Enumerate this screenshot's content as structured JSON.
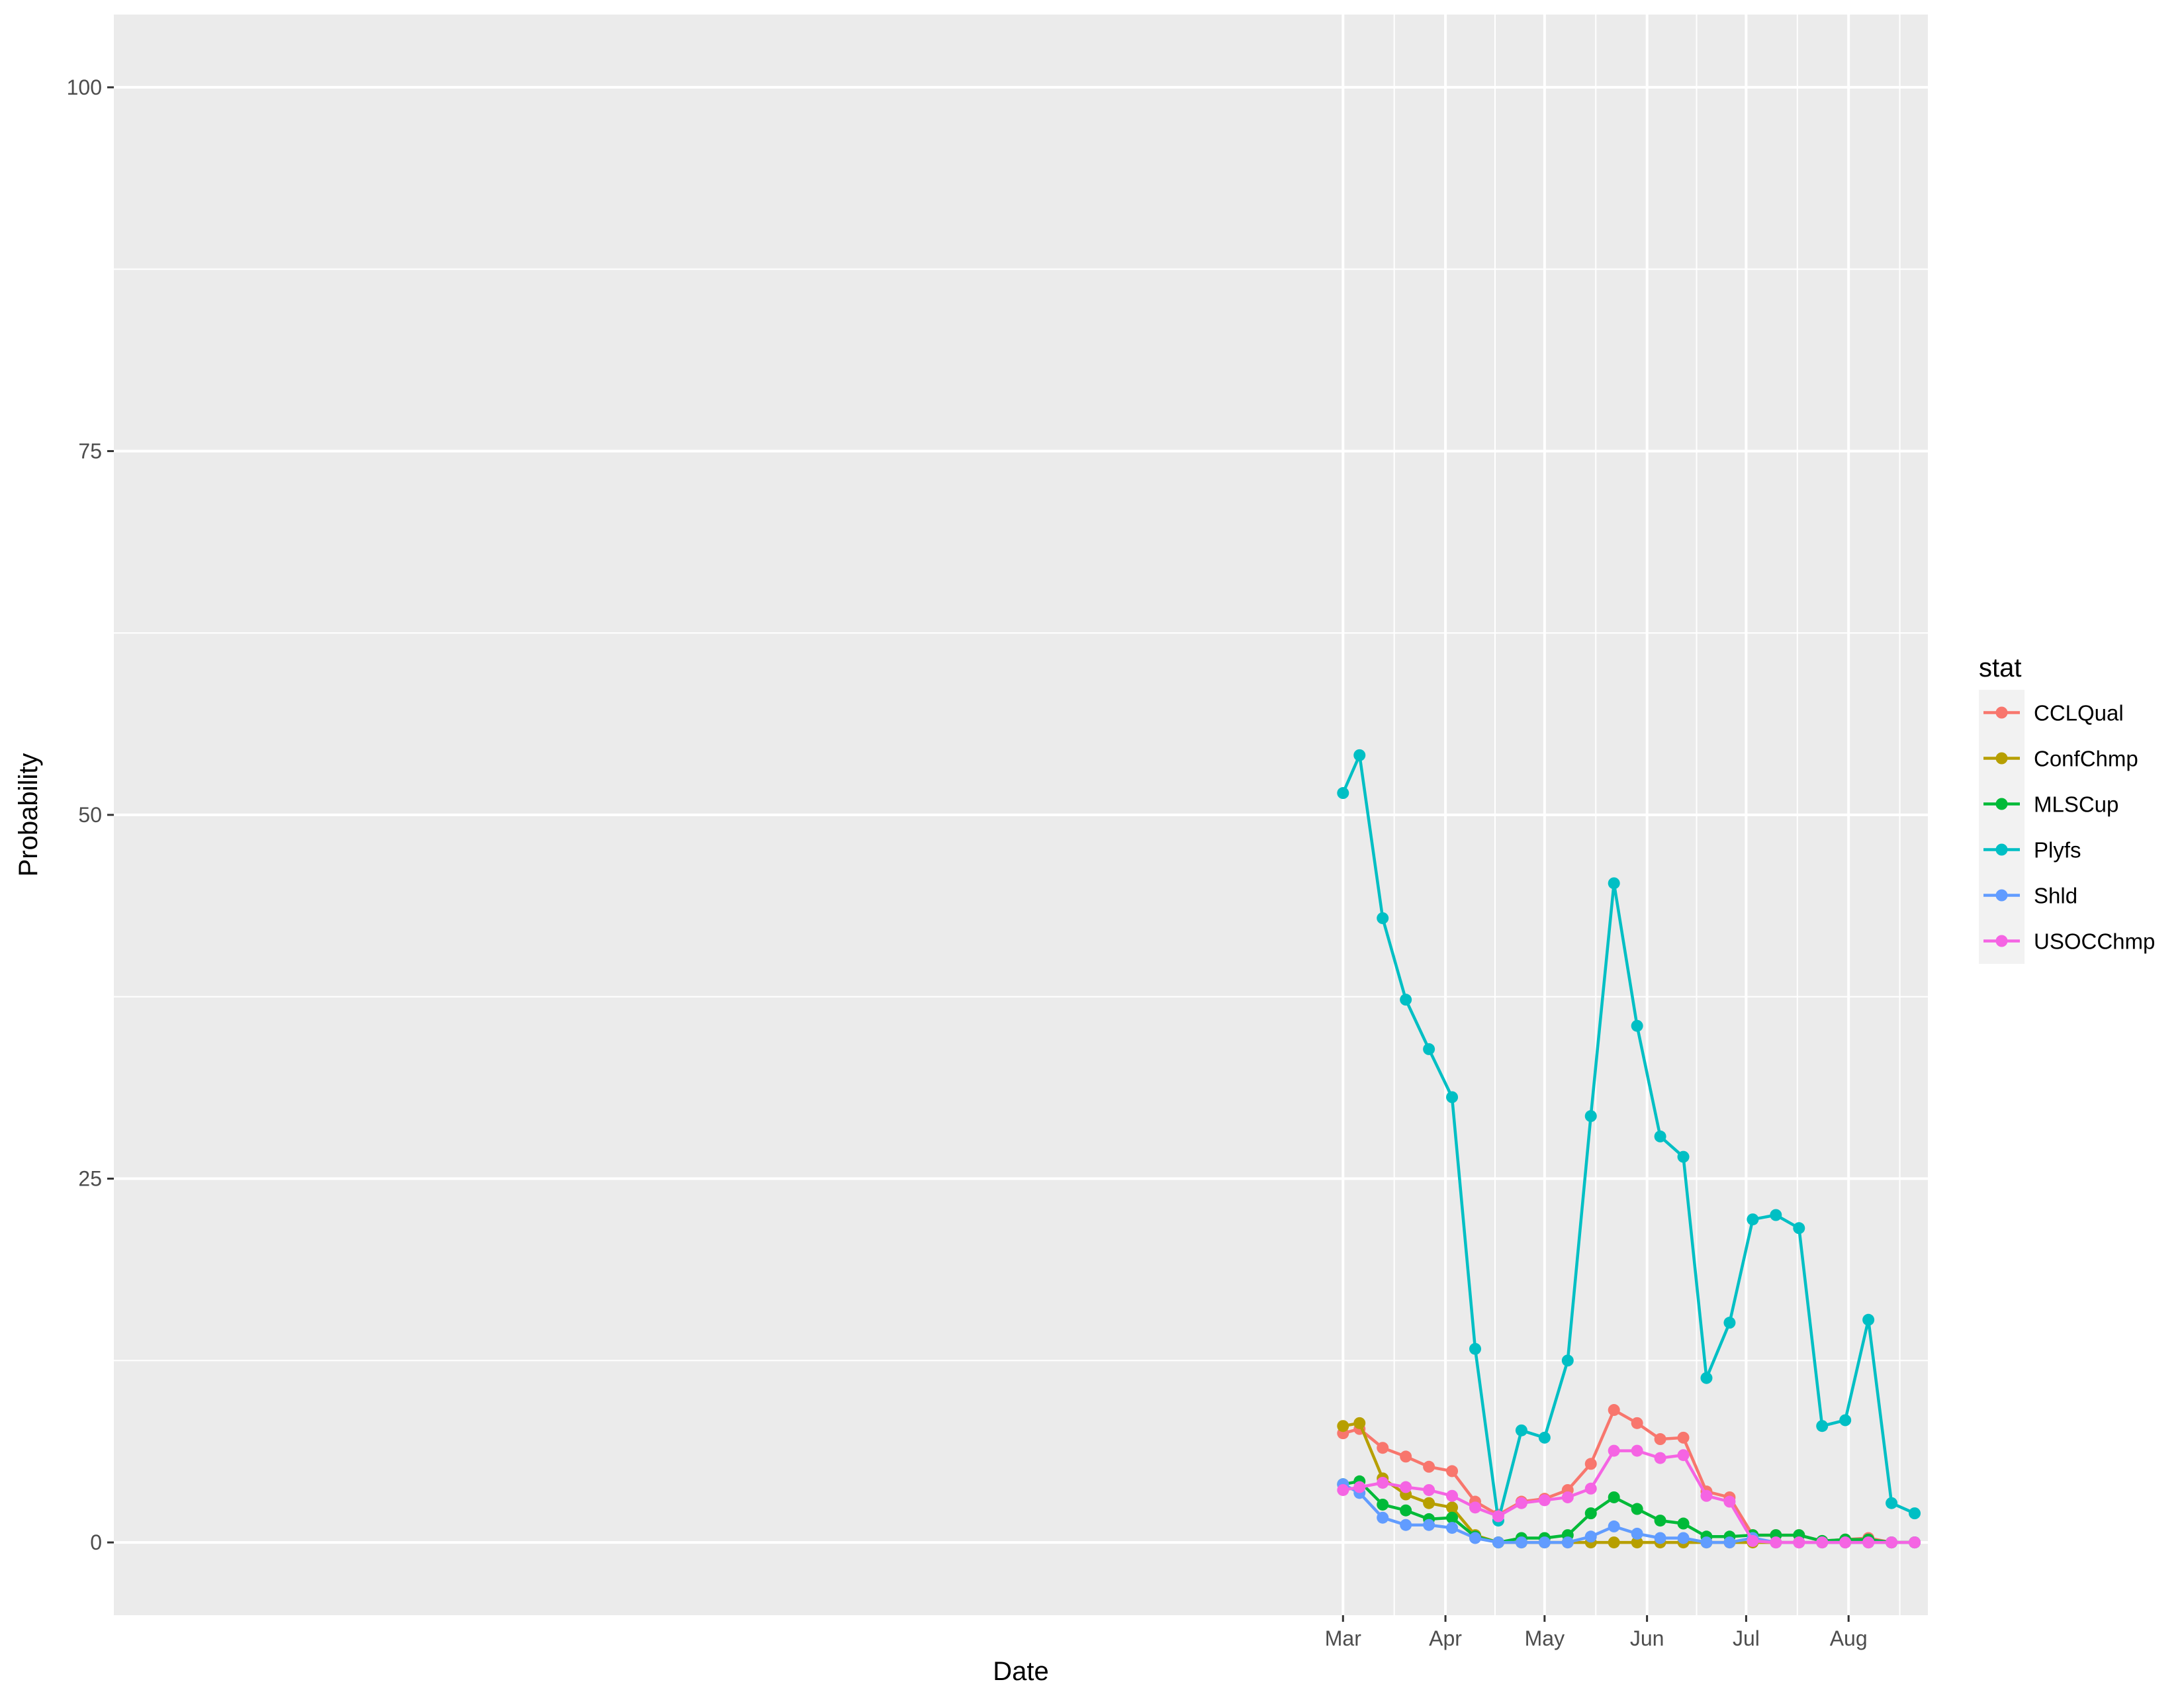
{
  "chart_data": {
    "type": "line",
    "xlabel": "Date",
    "ylabel": "Probability",
    "x_ticks": [
      "Mar",
      "Apr",
      "May",
      "Jun",
      "Jul",
      "Aug"
    ],
    "x_tick_dates": [
      "2017-03-01",
      "2017-04-01",
      "2017-05-01",
      "2017-06-01",
      "2017-07-01",
      "2017-08-01"
    ],
    "xlim": [
      "2016-02-23",
      "2017-08-25"
    ],
    "y_ticks": [
      0,
      25,
      50,
      75,
      100
    ],
    "ylim": [
      -5,
      105
    ],
    "grid": true,
    "legend": {
      "title": "stat",
      "position": "right"
    },
    "x": [
      "2017-03-01",
      "2017-03-06",
      "2017-03-13",
      "2017-03-20",
      "2017-03-27",
      "2017-04-03",
      "2017-04-10",
      "2017-04-17",
      "2017-04-24",
      "2017-05-01",
      "2017-05-08",
      "2017-05-15",
      "2017-05-22",
      "2017-05-29",
      "2017-06-05",
      "2017-06-12",
      "2017-06-19",
      "2017-06-26",
      "2017-07-03",
      "2017-07-10",
      "2017-07-17",
      "2017-07-24",
      "2017-07-31",
      "2017-08-07",
      "2017-08-14",
      "2017-08-21"
    ],
    "series": [
      {
        "name": "CCLQual",
        "color": "#F8766D",
        "values": [
          7.5,
          7.8,
          6.5,
          5.9,
          5.2,
          4.9,
          2.8,
          1.9,
          2.8,
          3.0,
          3.6,
          5.4,
          9.1,
          8.2,
          7.1,
          7.2,
          3.5,
          3.1,
          0.5,
          0.5,
          0.5,
          0.1,
          0.2,
          0.3,
          0.0,
          0.0
        ]
      },
      {
        "name": "ConfChmp",
        "color": "#B79F00",
        "values": [
          8.0,
          8.2,
          4.4,
          3.3,
          2.7,
          2.4,
          0.5,
          0.0,
          0.0,
          0.0,
          0.0,
          0.0,
          0.0,
          0.0,
          0.0,
          0.0,
          0.0,
          0.0,
          0.0,
          0.0,
          0.0,
          0.0,
          0.0,
          0.0,
          0.0,
          0.0
        ]
      },
      {
        "name": "MLSCup",
        "color": "#00BA38",
        "values": [
          4.0,
          4.2,
          2.6,
          2.2,
          1.6,
          1.7,
          0.4,
          0.0,
          0.3,
          0.3,
          0.5,
          2.0,
          3.1,
          2.3,
          1.5,
          1.3,
          0.4,
          0.4,
          0.5,
          0.5,
          0.5,
          0.1,
          0.2,
          0.2,
          0.0,
          0.0
        ]
      },
      {
        "name": "Plyfs",
        "color": "#00BFC4",
        "values": [
          51.5,
          54.1,
          42.9,
          37.3,
          33.9,
          30.6,
          13.3,
          1.5,
          7.7,
          7.2,
          12.5,
          29.3,
          45.3,
          35.5,
          27.9,
          26.5,
          11.3,
          15.1,
          22.2,
          22.5,
          21.6,
          8.0,
          8.4,
          15.3,
          2.7,
          2.0
        ]
      },
      {
        "name": "Shld",
        "color": "#619CFF",
        "values": [
          4.0,
          3.4,
          1.7,
          1.2,
          1.2,
          1.0,
          0.3,
          0.0,
          0.0,
          0.0,
          0.0,
          0.4,
          1.1,
          0.6,
          0.3,
          0.3,
          0.0,
          0.0,
          0.3,
          0.0,
          0.0,
          0.0,
          0.0,
          0.0,
          0.0,
          0.0
        ]
      },
      {
        "name": "USOCChmp",
        "color": "#F564E3",
        "values": [
          3.6,
          3.8,
          4.1,
          3.8,
          3.6,
          3.2,
          2.4,
          1.8,
          2.7,
          2.9,
          3.1,
          3.7,
          6.3,
          6.3,
          5.8,
          6.0,
          3.2,
          2.8,
          0.1,
          0.0,
          0.0,
          0.0,
          0.0,
          0.0,
          0.0,
          0.0
        ]
      }
    ]
  }
}
